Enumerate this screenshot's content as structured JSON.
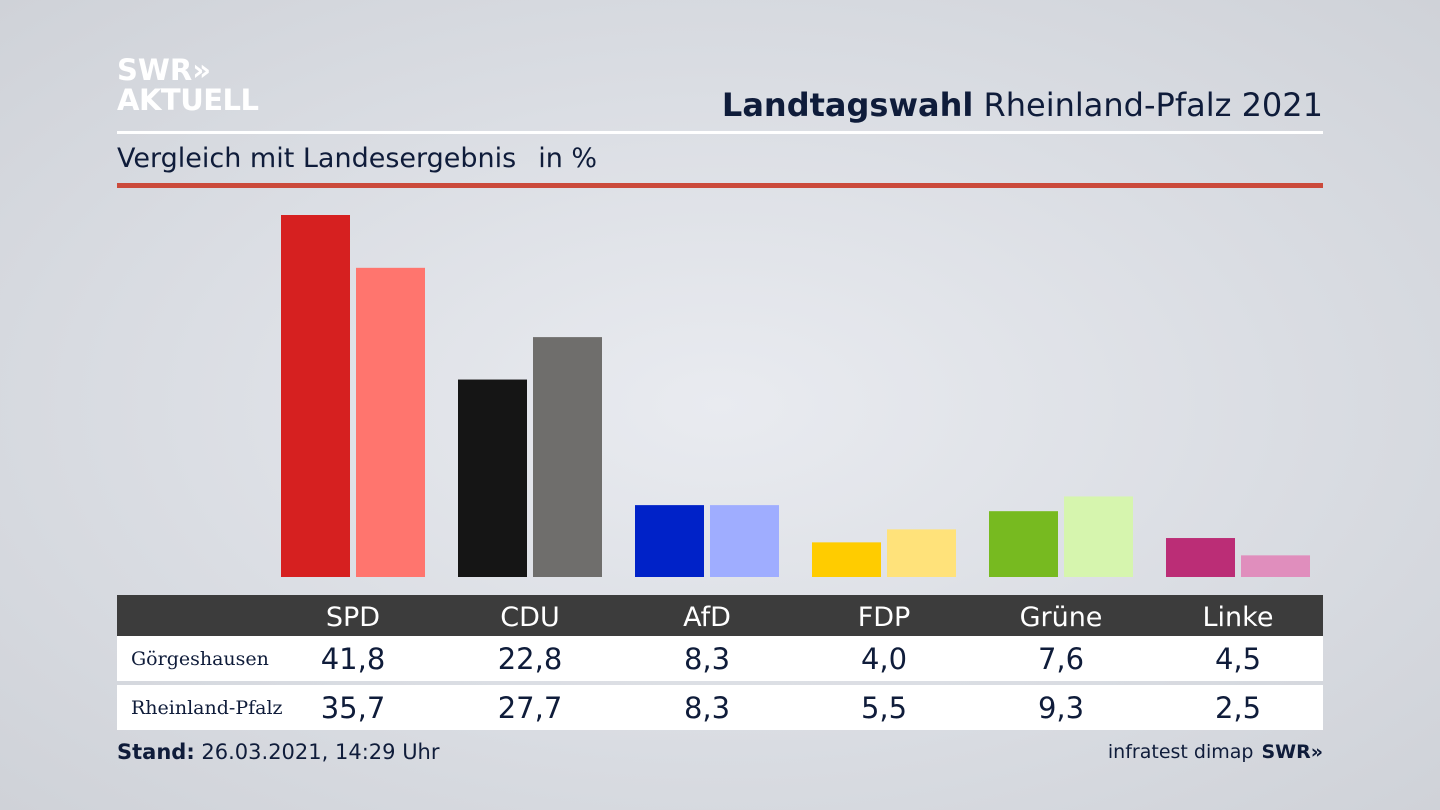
{
  "logo": {
    "line1": "SWR»",
    "line2": "AKTUELL"
  },
  "header": {
    "title_bold": "Landtagswahl",
    "title_rest": "Rheinland-Pfalz 2021"
  },
  "subtitle": {
    "text": "Vergleich mit Landesergebnis",
    "unit": "in %"
  },
  "footer": {
    "stand_label": "Stand:",
    "stand_value": "26.03.2021, 14:29 Uhr",
    "source": "infratest dimap",
    "brand": "SWR»"
  },
  "table": {
    "rows": [
      {
        "label": "Görgeshausen",
        "values": [
          "41,8",
          "22,8",
          "8,3",
          "4,0",
          "7,6",
          "4,5"
        ]
      },
      {
        "label": "Rheinland-Pfalz",
        "values": [
          "35,7",
          "27,7",
          "8,3",
          "5,5",
          "9,3",
          "2,5"
        ]
      }
    ]
  },
  "chart_data": {
    "type": "bar",
    "categories": [
      "SPD",
      "CDU",
      "AfD",
      "FDP",
      "Grüne",
      "Linke"
    ],
    "series": [
      {
        "name": "Görgeshausen",
        "values": [
          41.8,
          22.8,
          8.3,
          4.0,
          7.6,
          4.5
        ],
        "colors": [
          "#d62020",
          "#151515",
          "#0022c8",
          "#ffcc00",
          "#77ba20",
          "#bb2d76"
        ]
      },
      {
        "name": "Rheinland-Pfalz",
        "values": [
          35.7,
          27.7,
          8.3,
          5.5,
          9.3,
          2.5
        ],
        "colors": [
          "#ff756e",
          "#6f6e6c",
          "#9fadff",
          "#ffe27a",
          "#d6f5ae",
          "#e08ebd"
        ]
      }
    ],
    "ylim": [
      0,
      41.8
    ],
    "grid": false,
    "legend": "table-below"
  }
}
